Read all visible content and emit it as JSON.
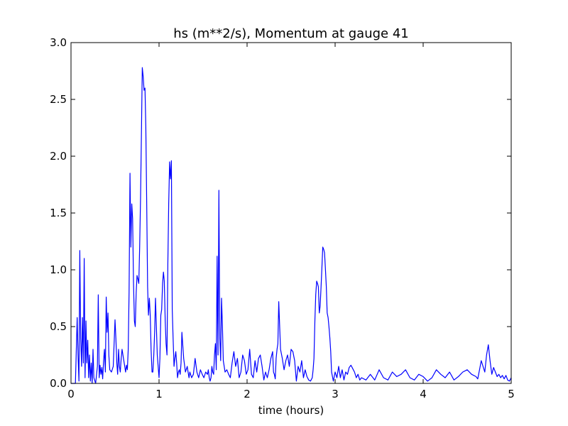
{
  "chart_data": {
    "type": "line",
    "title": "hs (m**2/s), Momentum at gauge 41",
    "xlabel": "time (hours)",
    "ylabel": "",
    "xlim": [
      0,
      5
    ],
    "ylim": [
      0,
      3.0
    ],
    "grid": false,
    "x_ticks": [
      0,
      1,
      2,
      3,
      4,
      5
    ],
    "x_tick_labels": [
      "0",
      "1",
      "2",
      "3",
      "4",
      "5"
    ],
    "y_ticks": [
      0,
      0.5,
      1.0,
      1.5,
      2.0,
      2.5,
      3.0
    ],
    "y_tick_labels": [
      "0.0",
      "0.5",
      "1.0",
      "1.5",
      "2.0",
      "2.5",
      "3.0"
    ],
    "colors": {
      "series": "#0000ff",
      "baseline": "#000000",
      "frame": "#000000"
    },
    "series": [
      {
        "x": [
          0.0,
          0.05,
          0.07,
          0.08,
          0.09,
          0.1,
          0.11,
          0.12,
          0.13,
          0.14,
          0.15,
          0.16,
          0.17,
          0.18,
          0.19,
          0.2,
          0.21,
          0.22,
          0.23,
          0.24,
          0.25,
          0.26,
          0.28,
          0.3,
          0.31,
          0.32,
          0.33,
          0.34,
          0.35,
          0.36,
          0.37,
          0.38,
          0.39,
          0.4,
          0.41,
          0.42,
          0.43,
          0.44,
          0.46,
          0.48,
          0.5,
          0.51,
          0.52,
          0.53,
          0.54,
          0.55,
          0.56,
          0.57,
          0.58,
          0.6,
          0.62,
          0.63,
          0.64,
          0.65,
          0.66,
          0.67,
          0.68,
          0.69,
          0.7,
          0.71,
          0.72,
          0.73,
          0.74,
          0.75,
          0.76,
          0.77,
          0.78,
          0.79,
          0.8,
          0.81,
          0.82,
          0.83,
          0.84,
          0.85,
          0.86,
          0.87,
          0.88,
          0.89,
          0.9,
          0.91,
          0.92,
          0.93,
          0.94,
          0.95,
          0.96,
          0.98,
          1.0,
          1.01,
          1.02,
          1.03,
          1.04,
          1.05,
          1.06,
          1.07,
          1.08,
          1.09,
          1.1,
          1.11,
          1.12,
          1.13,
          1.14,
          1.15,
          1.16,
          1.17,
          1.18,
          1.19,
          1.2,
          1.21,
          1.22,
          1.23,
          1.24,
          1.25,
          1.26,
          1.28,
          1.3,
          1.32,
          1.33,
          1.34,
          1.35,
          1.37,
          1.39,
          1.41,
          1.43,
          1.45,
          1.47,
          1.49,
          1.51,
          1.53,
          1.55,
          1.56,
          1.57,
          1.58,
          1.59,
          1.6,
          1.61,
          1.62,
          1.63,
          1.64,
          1.65,
          1.66,
          1.67,
          1.68,
          1.69,
          1.7,
          1.71,
          1.72,
          1.73,
          1.75,
          1.77,
          1.79,
          1.81,
          1.83,
          1.85,
          1.87,
          1.89,
          1.91,
          1.93,
          1.95,
          1.97,
          1.99,
          2.01,
          2.03,
          2.05,
          2.07,
          2.09,
          2.11,
          2.13,
          2.15,
          2.17,
          2.19,
          2.21,
          2.23,
          2.25,
          2.27,
          2.29,
          2.3,
          2.31,
          2.32,
          2.33,
          2.34,
          2.35,
          2.36,
          2.38,
          2.4,
          2.42,
          2.44,
          2.46,
          2.48,
          2.5,
          2.52,
          2.54,
          2.56,
          2.58,
          2.6,
          2.62,
          2.64,
          2.66,
          2.68,
          2.7,
          2.72,
          2.74,
          2.75,
          2.76,
          2.77,
          2.78,
          2.79,
          2.8,
          2.81,
          2.82,
          2.83,
          2.84,
          2.85,
          2.86,
          2.87,
          2.88,
          2.89,
          2.9,
          2.91,
          2.92,
          2.93,
          2.94,
          2.95,
          2.96,
          2.98,
          3.0,
          3.02,
          3.04,
          3.06,
          3.08,
          3.1,
          3.12,
          3.14,
          3.16,
          3.18,
          3.2,
          3.22,
          3.24,
          3.26,
          3.28,
          3.3,
          3.35,
          3.4,
          3.45,
          3.5,
          3.55,
          3.6,
          3.65,
          3.7,
          3.75,
          3.8,
          3.85,
          3.9,
          3.95,
          4.0,
          4.05,
          4.1,
          4.15,
          4.2,
          4.25,
          4.3,
          4.35,
          4.4,
          4.45,
          4.5,
          4.55,
          4.6,
          4.62,
          4.64,
          4.66,
          4.68,
          4.7,
          4.72,
          4.74,
          4.76,
          4.78,
          4.8,
          4.82,
          4.84,
          4.86,
          4.88,
          4.9,
          4.92,
          4.94,
          4.96,
          4.98,
          5.0
        ],
        "y": [
          0.0,
          0.0,
          0.58,
          0.25,
          0.02,
          1.17,
          0.4,
          0.15,
          0.58,
          0.18,
          1.1,
          0.05,
          0.55,
          0.18,
          0.38,
          0.05,
          0.25,
          0.02,
          0.18,
          0.0,
          0.3,
          0.05,
          0.0,
          0.15,
          0.78,
          0.05,
          0.16,
          0.08,
          0.14,
          0.04,
          0.2,
          0.3,
          0.1,
          0.76,
          0.45,
          0.62,
          0.25,
          0.12,
          0.1,
          0.15,
          0.56,
          0.4,
          0.18,
          0.08,
          0.3,
          0.15,
          0.1,
          0.22,
          0.3,
          0.2,
          0.1,
          0.16,
          0.12,
          0.3,
          0.8,
          1.85,
          1.2,
          1.58,
          1.45,
          0.9,
          0.55,
          0.5,
          0.8,
          0.95,
          0.92,
          0.88,
          1.2,
          1.65,
          2.2,
          2.78,
          2.7,
          2.58,
          2.6,
          2.25,
          1.6,
          0.85,
          0.6,
          0.75,
          0.6,
          0.3,
          0.1,
          0.1,
          0.25,
          0.45,
          0.75,
          0.25,
          0.05,
          0.22,
          0.6,
          0.65,
          0.88,
          0.98,
          0.9,
          0.55,
          0.35,
          0.25,
          1.05,
          1.58,
          1.95,
          1.8,
          1.96,
          0.65,
          0.4,
          0.15,
          0.22,
          0.28,
          0.18,
          0.05,
          0.1,
          0.12,
          0.08,
          0.18,
          0.45,
          0.22,
          0.1,
          0.15,
          0.1,
          0.05,
          0.1,
          0.05,
          0.08,
          0.22,
          0.1,
          0.05,
          0.12,
          0.08,
          0.05,
          0.1,
          0.08,
          0.12,
          0.05,
          0.02,
          0.05,
          0.15,
          0.1,
          0.08,
          0.25,
          0.35,
          0.12,
          1.12,
          0.25,
          1.7,
          0.4,
          0.2,
          0.75,
          0.5,
          0.2,
          0.1,
          0.12,
          0.08,
          0.05,
          0.18,
          0.28,
          0.15,
          0.22,
          0.05,
          0.1,
          0.25,
          0.2,
          0.08,
          0.12,
          0.3,
          0.08,
          0.05,
          0.2,
          0.1,
          0.22,
          0.25,
          0.15,
          0.03,
          0.1,
          0.05,
          0.12,
          0.22,
          0.28,
          0.1,
          0.08,
          0.04,
          0.22,
          0.3,
          0.35,
          0.72,
          0.3,
          0.22,
          0.12,
          0.2,
          0.25,
          0.15,
          0.3,
          0.28,
          0.2,
          0.02,
          0.15,
          0.1,
          0.2,
          0.05,
          0.12,
          0.06,
          0.03,
          0.02,
          0.05,
          0.12,
          0.22,
          0.55,
          0.78,
          0.9,
          0.88,
          0.85,
          0.62,
          0.68,
          0.85,
          1.02,
          1.2,
          1.18,
          1.15,
          1.0,
          0.85,
          0.62,
          0.58,
          0.5,
          0.4,
          0.28,
          0.1,
          0.02,
          0.1,
          0.05,
          0.15,
          0.05,
          0.12,
          0.03,
          0.1,
          0.08,
          0.14,
          0.16,
          0.13,
          0.1,
          0.05,
          0.08,
          0.03,
          0.05,
          0.03,
          0.08,
          0.03,
          0.12,
          0.05,
          0.03,
          0.1,
          0.06,
          0.08,
          0.12,
          0.05,
          0.03,
          0.08,
          0.06,
          0.02,
          0.05,
          0.12,
          0.08,
          0.05,
          0.1,
          0.03,
          0.06,
          0.1,
          0.12,
          0.08,
          0.06,
          0.04,
          0.12,
          0.2,
          0.15,
          0.1,
          0.25,
          0.34,
          0.2,
          0.08,
          0.14,
          0.1,
          0.06,
          0.08,
          0.05,
          0.07,
          0.04,
          0.07,
          0.03,
          0.02,
          0.05
        ]
      }
    ]
  }
}
